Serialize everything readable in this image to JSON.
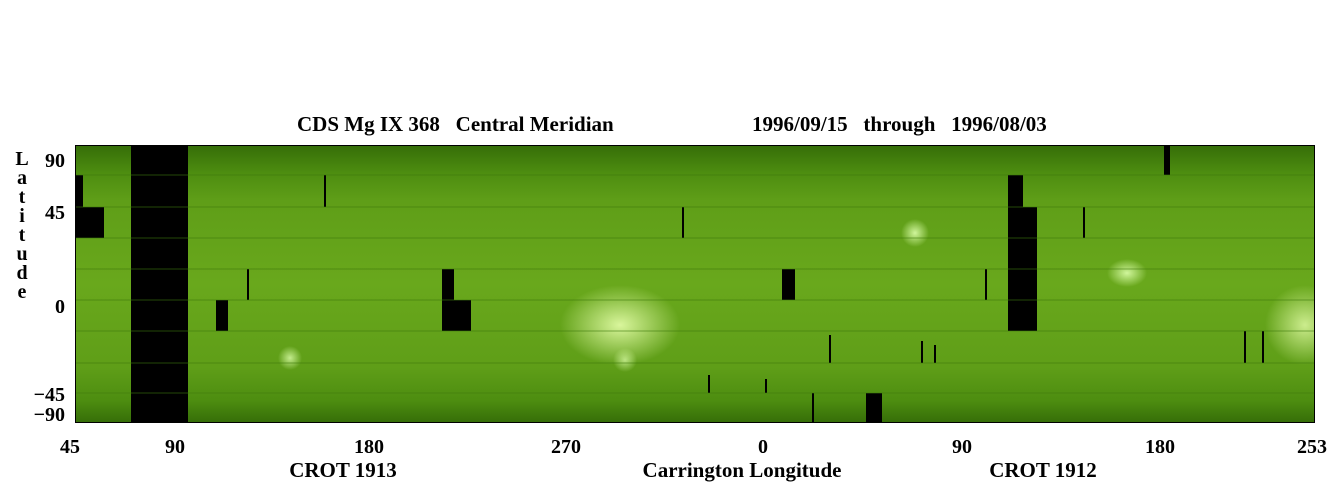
{
  "title": {
    "instrument": "CDS Mg IX 368   Central Meridian",
    "date_range": "1996/09/15   through   1996/08/03"
  },
  "axes": {
    "y_title": "Latitude",
    "y_ticks": [
      "90",
      "45",
      "0",
      "−45",
      "−90"
    ],
    "x_ticks": [
      "45",
      "90",
      "180",
      "270",
      "0",
      "90",
      "180",
      "253"
    ],
    "x_title": "Carrington Longitude",
    "rotations": [
      "CROT 1913",
      "CROT 1912"
    ]
  },
  "colors": {
    "map_base": "#69a81c",
    "map_dark": "#356d08",
    "data_gap": "#000000"
  }
}
